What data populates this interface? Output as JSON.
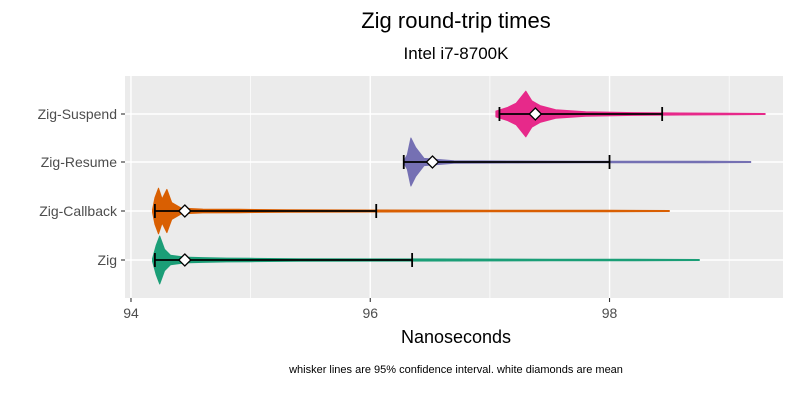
{
  "chart_data": {
    "type": "violin",
    "title": "Zig  round-trip times",
    "subtitle": "Intel i7-8700K",
    "xlabel": "Nanoseconds",
    "ylabel": "",
    "caption": "whisker lines are 95% confidence interval. white diamonds are mean",
    "xlim": [
      93.95,
      99.45
    ],
    "xticks": [
      94,
      96,
      98
    ],
    "xtick_labels": [
      "94",
      "96",
      "98"
    ],
    "grid": true,
    "legend": "none",
    "categories": [
      "Zig-Suspend",
      "Zig-Resume",
      "Zig-Callback",
      "Zig"
    ],
    "series": [
      {
        "category": "Zig-Suspend",
        "color": "#e7298a",
        "mean": 97.38,
        "ci_low": 97.08,
        "ci_high": 98.44,
        "min": 97.05,
        "max": 99.3,
        "density": [
          [
            97.05,
            0.12
          ],
          [
            97.15,
            0.28
          ],
          [
            97.22,
            0.45
          ],
          [
            97.3,
            0.95
          ],
          [
            97.35,
            0.55
          ],
          [
            97.42,
            0.35
          ],
          [
            97.55,
            0.18
          ],
          [
            97.8,
            0.09
          ],
          [
            98.2,
            0.06
          ],
          [
            98.6,
            0.04
          ],
          [
            99.0,
            0.03
          ],
          [
            99.3,
            0.02
          ]
        ]
      },
      {
        "category": "Zig-Resume",
        "color": "#7570b3",
        "mean": 96.52,
        "ci_low": 96.28,
        "ci_high": 98.0,
        "min": 96.28,
        "max": 99.18,
        "density": [
          [
            96.28,
            0.04
          ],
          [
            96.31,
            0.3
          ],
          [
            96.34,
            1.0
          ],
          [
            96.38,
            0.6
          ],
          [
            96.45,
            0.15
          ],
          [
            96.7,
            0.05
          ],
          [
            97.2,
            0.04
          ],
          [
            97.8,
            0.035
          ],
          [
            98.4,
            0.03
          ],
          [
            98.8,
            0.03
          ],
          [
            99.18,
            0.02
          ]
        ]
      },
      {
        "category": "Zig-Callback",
        "color": "#d95f02",
        "mean": 94.45,
        "ci_low": 94.2,
        "ci_high": 96.05,
        "min": 94.18,
        "max": 98.5,
        "density": [
          [
            94.18,
            0.05
          ],
          [
            94.2,
            0.55
          ],
          [
            94.23,
            0.95
          ],
          [
            94.26,
            0.5
          ],
          [
            94.3,
            0.9
          ],
          [
            94.34,
            0.35
          ],
          [
            94.42,
            0.12
          ],
          [
            94.6,
            0.08
          ],
          [
            94.9,
            0.07
          ],
          [
            95.3,
            0.05
          ],
          [
            96.0,
            0.04
          ],
          [
            97.0,
            0.03
          ],
          [
            98.0,
            0.03
          ],
          [
            98.5,
            0.02
          ]
        ]
      },
      {
        "category": "Zig",
        "color": "#1b9e77",
        "mean": 94.45,
        "ci_low": 94.2,
        "ci_high": 96.35,
        "min": 94.18,
        "max": 98.75,
        "density": [
          [
            94.18,
            0.05
          ],
          [
            94.21,
            0.6
          ],
          [
            94.24,
            1.0
          ],
          [
            94.28,
            0.45
          ],
          [
            94.33,
            0.2
          ],
          [
            94.45,
            0.12
          ],
          [
            94.6,
            0.1
          ],
          [
            94.8,
            0.08
          ],
          [
            95.0,
            0.07
          ],
          [
            95.4,
            0.05
          ],
          [
            96.0,
            0.045
          ],
          [
            96.7,
            0.04
          ],
          [
            97.5,
            0.03
          ],
          [
            98.2,
            0.03
          ],
          [
            98.75,
            0.02
          ]
        ]
      }
    ]
  }
}
